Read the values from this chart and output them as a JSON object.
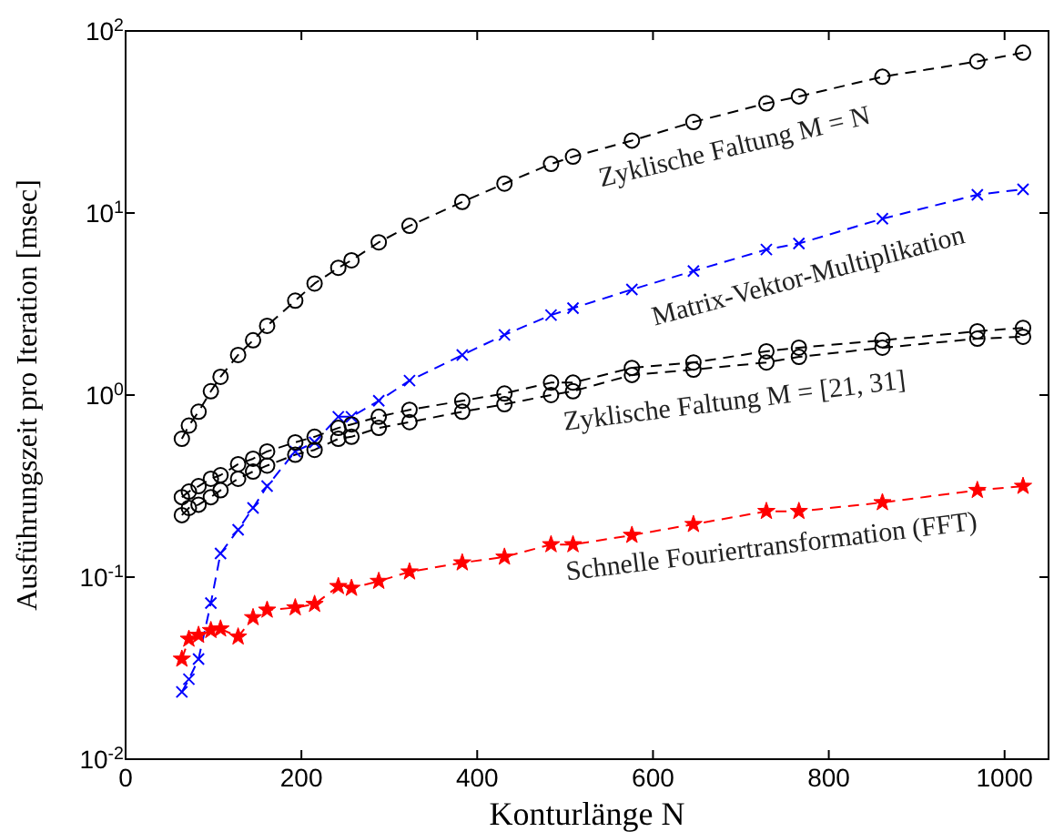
{
  "chart_data": {
    "type": "line",
    "xlabel": "Konturlänge N",
    "ylabel": "Ausführungszeit pro Iteration [msec]",
    "x": [
      64,
      72,
      83,
      97,
      108,
      128,
      145,
      161,
      193,
      215,
      242,
      257,
      288,
      323,
      383,
      431,
      484,
      509,
      576,
      646,
      729,
      766,
      861,
      969,
      1021
    ],
    "series": [
      {
        "name": "Zyklische Faltung M = N",
        "color": "#000000",
        "marker": "circle",
        "values": [
          0.575,
          0.68,
          0.81,
          1.05,
          1.26,
          1.66,
          2.0,
          2.4,
          3.3,
          4.1,
          5.0,
          5.5,
          6.9,
          8.5,
          11.5,
          14.5,
          18.6,
          20.4,
          25,
          31.6,
          40,
          43.7,
          56,
          68,
          76
        ]
      },
      {
        "name": "Matrix-Vektor-Multiplikation",
        "color": "#0000ff",
        "marker": "cross",
        "values": [
          0.0234,
          0.0275,
          0.0355,
          0.072,
          0.135,
          0.182,
          0.24,
          0.316,
          0.49,
          0.55,
          0.76,
          0.76,
          0.93,
          1.2,
          1.66,
          2.14,
          2.75,
          3.0,
          3.8,
          4.8,
          6.3,
          6.8,
          9.3,
          12.6,
          13.5
        ]
      },
      {
        "color": "#000000",
        "marker": "circle",
        "values": [
          0.275,
          0.295,
          0.316,
          0.347,
          0.363,
          0.417,
          0.447,
          0.49,
          0.55,
          0.59,
          0.66,
          0.69,
          0.76,
          0.83,
          0.93,
          1.02,
          1.17,
          1.17,
          1.41,
          1.51,
          1.74,
          1.82,
          2.0,
          2.24,
          2.34
        ]
      },
      {
        "name": "Zyklische Faltung M = [21,  31]",
        "color": "#000000",
        "marker": "circle",
        "values": [
          0.219,
          0.24,
          0.25,
          0.275,
          0.3,
          0.347,
          0.38,
          0.41,
          0.47,
          0.5,
          0.575,
          0.59,
          0.66,
          0.71,
          0.81,
          0.89,
          1.0,
          1.05,
          1.29,
          1.38,
          1.51,
          1.62,
          1.82,
          2.04,
          2.09
        ]
      },
      {
        "name": "Schnelle Fouriertransformation (FFT)",
        "color": "#ff0000",
        "marker": "star",
        "values": [
          0.0355,
          0.0457,
          0.048,
          0.051,
          0.052,
          0.047,
          0.06,
          0.066,
          0.068,
          0.071,
          0.089,
          0.087,
          0.095,
          0.107,
          0.12,
          0.129,
          0.151,
          0.151,
          0.17,
          0.195,
          0.23,
          0.23,
          0.257,
          0.3,
          0.316
        ]
      }
    ],
    "line_style": "dashed",
    "log": "y",
    "grid": false,
    "legend": false,
    "xlim": [
      0,
      1050
    ],
    "xticks": [
      0,
      200,
      400,
      600,
      800,
      1000
    ],
    "ylim": [
      0.01,
      100
    ],
    "yticks": [
      {
        "value": 0.01,
        "label": "10$^{-2}$"
      },
      {
        "value": 0.1,
        "label": "10$^{-1}$"
      },
      {
        "value": 1,
        "label": "10$^{0}$"
      },
      {
        "value": 10,
        "label": "10$^{1}$"
      },
      {
        "value": 100,
        "label": "10$^{2}$"
      }
    ]
  }
}
